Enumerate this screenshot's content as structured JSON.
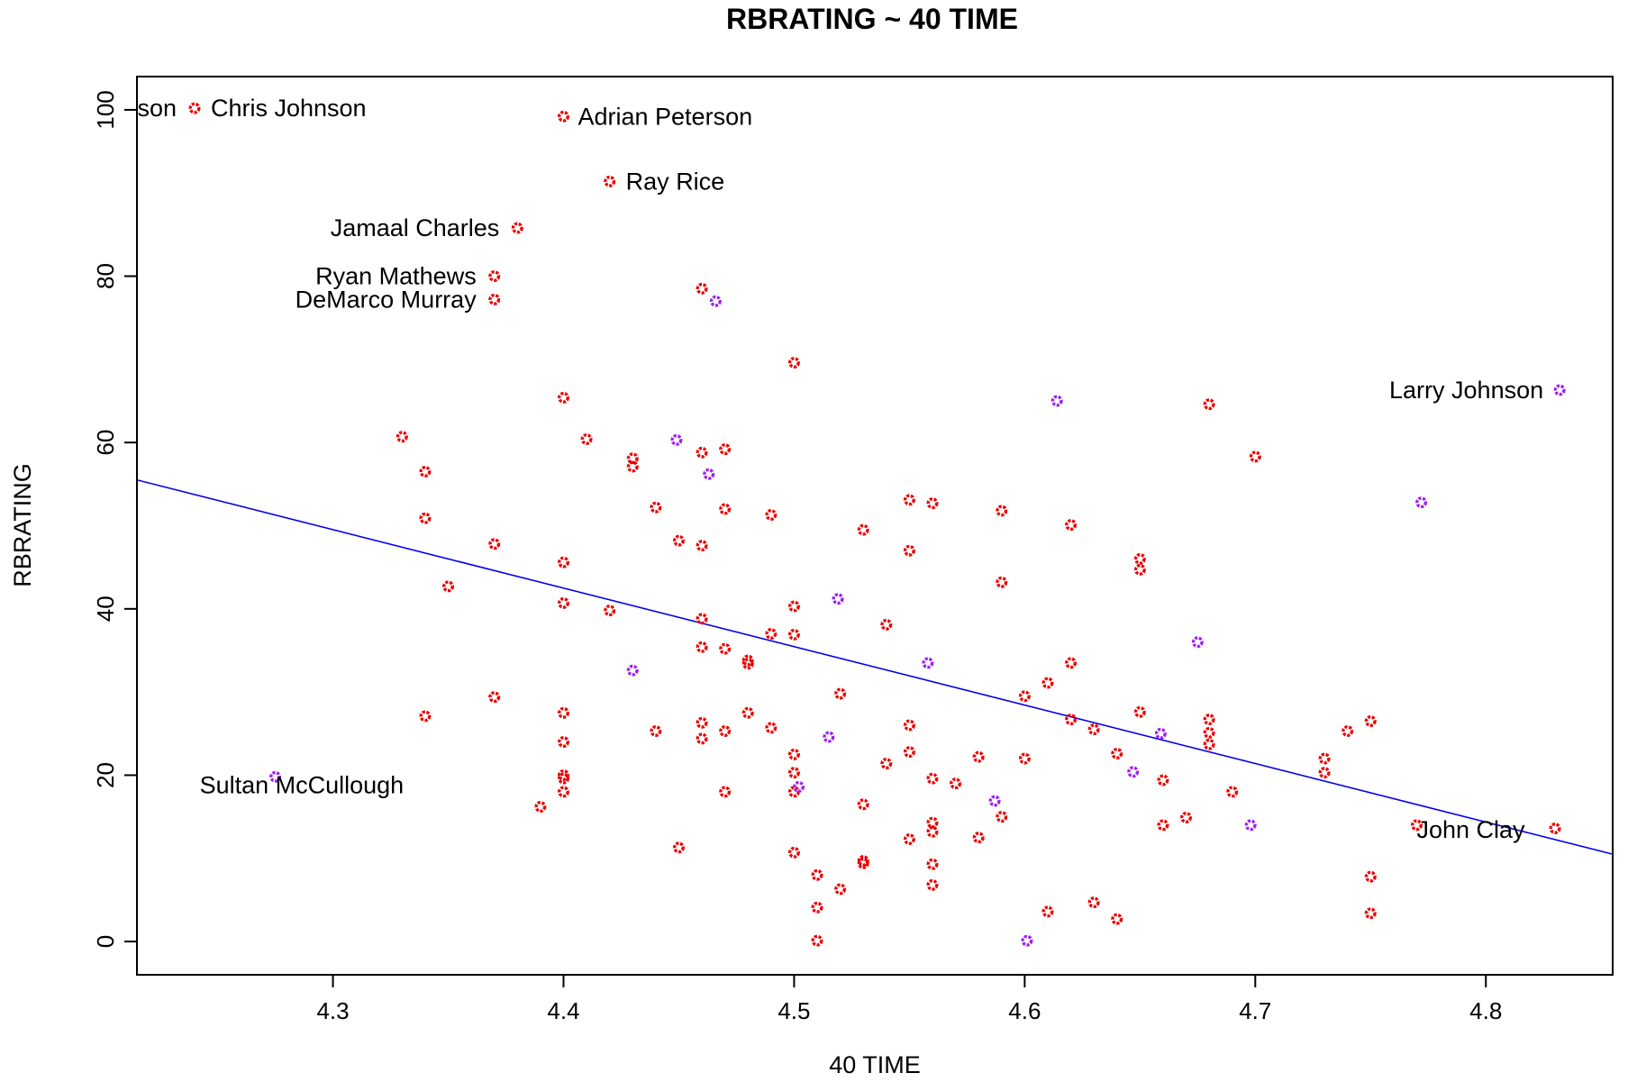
{
  "chart_data": {
    "type": "scatter",
    "title": "RBRATING ~ 40 TIME",
    "xlabel": "40 TIME",
    "ylabel": "RBRATING",
    "xlim": [
      4.215,
      4.855
    ],
    "ylim": [
      -4,
      104
    ],
    "x_ticks": [
      4.3,
      4.4,
      4.5,
      4.6,
      4.7,
      4.8
    ],
    "x_tick_labels": [
      "4.3",
      "4.4",
      "4.5",
      "4.6",
      "4.7",
      "4.8"
    ],
    "y_ticks": [
      0,
      20,
      40,
      60,
      80,
      100
    ],
    "y_tick_labels": [
      "0",
      "20",
      "40",
      "60",
      "80",
      "100"
    ],
    "grid": false,
    "legend": "none",
    "colors": {
      "red": "#ee0000",
      "purple": "#a020f0",
      "fit_line": "#0000ee",
      "frame": "#000000"
    },
    "regression_line": {
      "x": [
        4.215,
        4.855
      ],
      "y": [
        55.5,
        10.5
      ]
    },
    "series": [
      {
        "color": "red",
        "points": [
          [
            4.24,
            100.2
          ],
          [
            4.4,
            99.2
          ],
          [
            4.42,
            91.4
          ],
          [
            4.38,
            85.8
          ],
          [
            4.37,
            80.0
          ],
          [
            4.37,
            77.2
          ],
          [
            4.46,
            78.5
          ],
          [
            4.5,
            69.6
          ],
          [
            4.4,
            65.4
          ],
          [
            4.33,
            60.7
          ],
          [
            4.41,
            60.4
          ],
          [
            4.43,
            58.1
          ],
          [
            4.43,
            57.1
          ],
          [
            4.46,
            58.8
          ],
          [
            4.47,
            59.2
          ],
          [
            4.34,
            56.5
          ],
          [
            4.34,
            50.9
          ],
          [
            4.44,
            52.2
          ],
          [
            4.47,
            52.0
          ],
          [
            4.49,
            51.3
          ],
          [
            4.45,
            48.2
          ],
          [
            4.46,
            47.6
          ],
          [
            4.37,
            47.8
          ],
          [
            4.4,
            45.6
          ],
          [
            4.35,
            42.7
          ],
          [
            4.4,
            40.7
          ],
          [
            4.42,
            39.8
          ],
          [
            4.46,
            38.8
          ],
          [
            4.5,
            40.3
          ],
          [
            4.49,
            37.0
          ],
          [
            4.5,
            36.9
          ],
          [
            4.46,
            35.4
          ],
          [
            4.47,
            35.2
          ],
          [
            4.48,
            33.8
          ],
          [
            4.48,
            33.4
          ],
          [
            4.53,
            49.5
          ],
          [
            4.55,
            53.1
          ],
          [
            4.56,
            52.7
          ],
          [
            4.55,
            47.0
          ],
          [
            4.54,
            38.1
          ],
          [
            4.59,
            51.8
          ],
          [
            4.59,
            43.2
          ],
          [
            4.62,
            50.1
          ],
          [
            4.68,
            64.6
          ],
          [
            4.7,
            58.3
          ],
          [
            4.65,
            46.0
          ],
          [
            4.65,
            44.7
          ],
          [
            4.34,
            27.1
          ],
          [
            4.37,
            29.4
          ],
          [
            4.4,
            27.5
          ],
          [
            4.4,
            24.0
          ],
          [
            4.44,
            25.3
          ],
          [
            4.46,
            26.3
          ],
          [
            4.46,
            24.4
          ],
          [
            4.47,
            25.3
          ],
          [
            4.48,
            27.5
          ],
          [
            4.49,
            25.7
          ],
          [
            4.52,
            29.8
          ],
          [
            4.5,
            22.5
          ],
          [
            4.5,
            20.3
          ],
          [
            4.4,
            20.0
          ],
          [
            4.4,
            19.6
          ],
          [
            4.4,
            18.0
          ],
          [
            4.39,
            16.2
          ],
          [
            4.47,
            18.0
          ],
          [
            4.5,
            18.0
          ],
          [
            4.45,
            11.3
          ],
          [
            4.5,
            10.7
          ],
          [
            4.51,
            8.0
          ],
          [
            4.51,
            4.1
          ],
          [
            4.52,
            6.3
          ],
          [
            4.51,
            0.1
          ],
          [
            4.53,
            9.7
          ],
          [
            4.53,
            9.4
          ],
          [
            4.53,
            16.5
          ],
          [
            4.54,
            21.4
          ],
          [
            4.55,
            26.0
          ],
          [
            4.55,
            22.8
          ],
          [
            4.55,
            12.3
          ],
          [
            4.56,
            19.6
          ],
          [
            4.56,
            14.3
          ],
          [
            4.56,
            13.2
          ],
          [
            4.56,
            9.3
          ],
          [
            4.56,
            6.8
          ],
          [
            4.57,
            19.0
          ],
          [
            4.58,
            22.2
          ],
          [
            4.58,
            12.5
          ],
          [
            4.59,
            15.0
          ],
          [
            4.6,
            29.5
          ],
          [
            4.61,
            31.1
          ],
          [
            4.6,
            22.0
          ],
          [
            4.62,
            33.5
          ],
          [
            4.62,
            26.7
          ],
          [
            4.63,
            25.5
          ],
          [
            4.64,
            22.6
          ],
          [
            4.65,
            27.6
          ],
          [
            4.66,
            19.4
          ],
          [
            4.66,
            14.0
          ],
          [
            4.67,
            14.9
          ],
          [
            4.68,
            26.7
          ],
          [
            4.68,
            25.1
          ],
          [
            4.68,
            23.7
          ],
          [
            4.69,
            18.0
          ],
          [
            4.61,
            3.6
          ],
          [
            4.63,
            4.7
          ],
          [
            4.64,
            2.7
          ],
          [
            4.73,
            22.0
          ],
          [
            4.73,
            20.3
          ],
          [
            4.74,
            25.3
          ],
          [
            4.75,
            26.5
          ],
          [
            4.75,
            7.8
          ],
          [
            4.75,
            3.4
          ],
          [
            4.77,
            14.0
          ],
          [
            4.83,
            13.6
          ]
        ]
      },
      {
        "color": "purple",
        "points": [
          [
            4.466,
            77.0
          ],
          [
            4.449,
            60.3
          ],
          [
            4.463,
            56.2
          ],
          [
            4.614,
            65.0
          ],
          [
            4.832,
            66.3
          ],
          [
            4.772,
            52.8
          ],
          [
            4.519,
            41.2
          ],
          [
            4.43,
            32.6
          ],
          [
            4.558,
            33.5
          ],
          [
            4.675,
            36.0
          ],
          [
            4.515,
            24.6
          ],
          [
            4.659,
            25.0
          ],
          [
            4.275,
            19.8
          ],
          [
            4.502,
            18.6
          ],
          [
            4.587,
            16.9
          ],
          [
            4.647,
            20.4
          ],
          [
            4.698,
            14.0
          ],
          [
            4.601,
            0.1
          ]
        ]
      }
    ],
    "annotations": [
      {
        "text": "son",
        "x": 4.24,
        "y": 100.2
      },
      {
        "text": "Chris Johnson",
        "x": 4.24,
        "y": 100.2
      },
      {
        "text": "Adrian Peterson",
        "x": 4.4,
        "y": 99.2
      },
      {
        "text": "Ray Rice",
        "x": 4.42,
        "y": 91.4
      },
      {
        "text": "Jamaal Charles",
        "x": 4.38,
        "y": 85.8
      },
      {
        "text": "Ryan Mathews",
        "x": 4.37,
        "y": 80.0
      },
      {
        "text": "DeMarco Murray",
        "x": 4.37,
        "y": 77.2
      },
      {
        "text": "Larry Johnson",
        "x": 4.832,
        "y": 66.3
      },
      {
        "text": "Sultan McCullough",
        "x": 4.275,
        "y": 19.8
      },
      {
        "text": "John Clay",
        "x": 4.77,
        "y": 14.0
      }
    ]
  }
}
